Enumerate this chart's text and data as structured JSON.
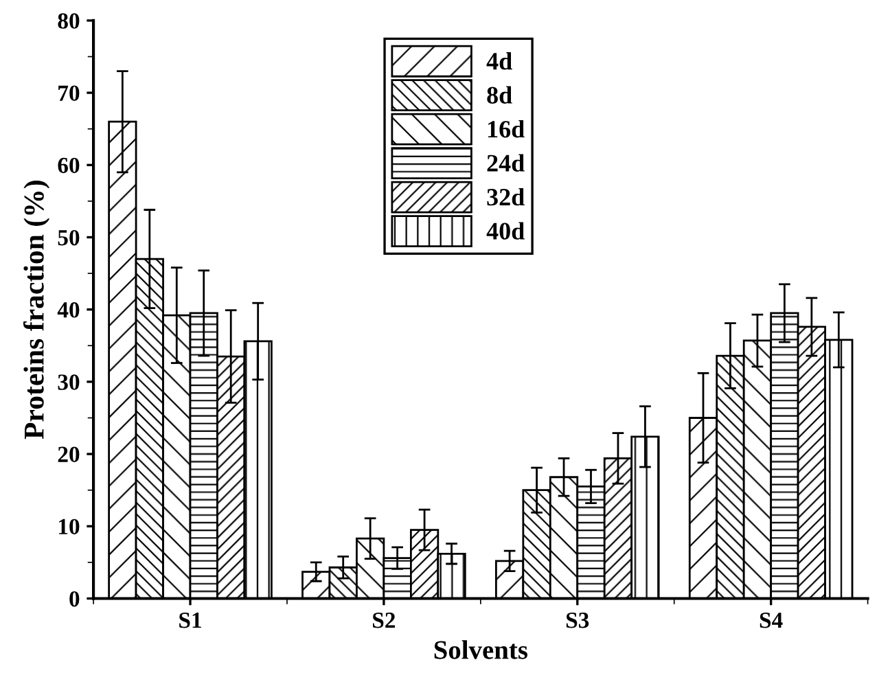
{
  "chart_data": {
    "type": "bar",
    "xlabel": "Solvents",
    "ylabel": "Proteins fraction (%)",
    "categories": [
      "S1",
      "S2",
      "S3",
      "S4"
    ],
    "series": [
      {
        "name": "4d",
        "color": "#000000",
        "values": [
          66,
          3.7,
          5.2,
          25
        ],
        "errors": [
          7,
          1.3,
          1.4,
          6.2
        ]
      },
      {
        "name": "8d",
        "color": "#000000",
        "values": [
          47,
          4.3,
          15,
          33.6
        ],
        "errors": [
          6.8,
          1.5,
          3.1,
          4.5
        ]
      },
      {
        "name": "16d",
        "color": "#000000",
        "values": [
          39.2,
          8.3,
          16.8,
          35.7
        ],
        "errors": [
          6.6,
          2.8,
          2.6,
          3.6
        ]
      },
      {
        "name": "24d",
        "color": "#000000",
        "values": [
          39.5,
          5.6,
          15.5,
          39.5
        ],
        "errors": [
          5.9,
          1.5,
          2.3,
          4
        ]
      },
      {
        "name": "32d",
        "color": "#000000",
        "values": [
          33.5,
          9.5,
          19.4,
          37.6
        ],
        "errors": [
          6.4,
          2.8,
          3.5,
          4
        ]
      },
      {
        "name": "40d",
        "color": "#000000",
        "values": [
          35.6,
          6.2,
          22.4,
          35.8
        ],
        "errors": [
          5.3,
          1.4,
          4.2,
          3.8
        ]
      }
    ],
    "ylim": [
      0,
      80
    ],
    "yticks": [
      0,
      10,
      20,
      30,
      40,
      50,
      60,
      70,
      80
    ],
    "grid": false,
    "legend": "top"
  }
}
